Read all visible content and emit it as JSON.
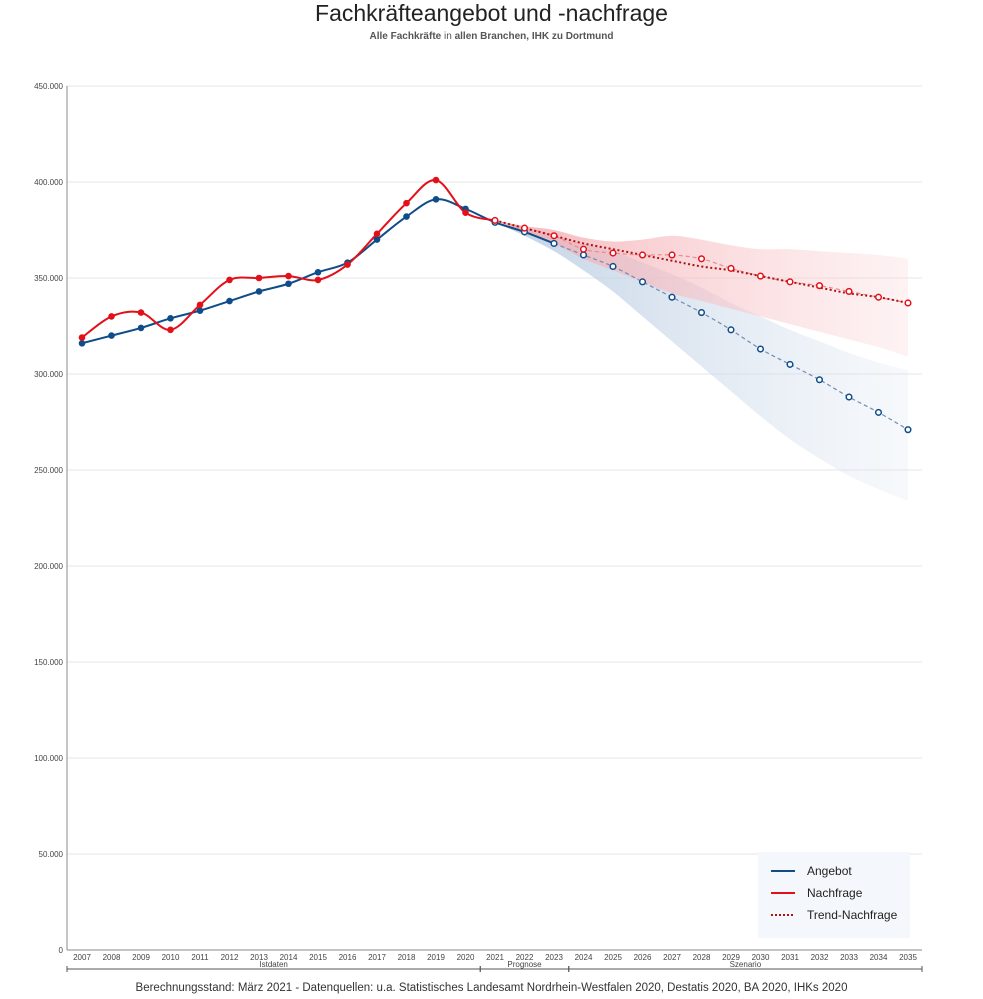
{
  "title": "Fachkräfteangebot und -nachfrage",
  "subtitle_parts": [
    "Alle Fachkräfte ",
    "in",
    " allen Branchen, IHK zu Dortmund"
  ],
  "footer": "Berechnungsstand: März 2021 - Datenquellen: u.a. Statistisches Landesamt Nordrhein-Westfalen 2020, Destatis 2020, BA 2020, IHKs 2020",
  "colors": {
    "angebot": "#0f4c8a",
    "nachfrage": "#e3101a",
    "trend": "#b01010",
    "angebot_band": "#c9d7e8",
    "nachfrage_band": "#f7c6c9",
    "grid": "#e4e4e4",
    "axis": "#888888"
  },
  "chart_data": {
    "type": "line",
    "x": [
      2007,
      2008,
      2009,
      2010,
      2011,
      2012,
      2013,
      2014,
      2015,
      2016,
      2017,
      2018,
      2019,
      2020,
      2021,
      2022,
      2023,
      2024,
      2025,
      2026,
      2027,
      2028,
      2029,
      2030,
      2031,
      2032,
      2033,
      2034,
      2035
    ],
    "ylim": [
      0,
      450000
    ],
    "yticks": [
      0,
      50000,
      100000,
      150000,
      200000,
      250000,
      300000,
      350000,
      400000,
      450000
    ],
    "ytick_labels": [
      "0",
      "50.000",
      "100.000",
      "150.000",
      "200.000",
      "250.000",
      "300.000",
      "350.000",
      "400.000",
      "450.000"
    ],
    "grid": true,
    "legend_position": "bottom-right",
    "periods": [
      {
        "label": "Istdaten",
        "from": 2007,
        "to": 2020
      },
      {
        "label": "Prognose",
        "from": 2021,
        "to": 2023
      },
      {
        "label": "Szenario",
        "from": 2024,
        "to": 2035
      }
    ],
    "series": [
      {
        "name": "Angebot",
        "key": "angebot",
        "values": [
          316000,
          320000,
          324000,
          329000,
          333000,
          338000,
          343000,
          347000,
          353000,
          358000,
          370000,
          382000,
          391000,
          386000,
          379000,
          374000,
          368000,
          362000,
          356000,
          348000,
          340000,
          332000,
          323000,
          313000,
          305000,
          297000,
          288000,
          280000,
          271000
        ],
        "band_low": [
          null,
          null,
          null,
          null,
          null,
          null,
          null,
          null,
          null,
          null,
          null,
          null,
          null,
          null,
          379000,
          372000,
          364000,
          354000,
          343000,
          330000,
          317000,
          304000,
          291000,
          278000,
          266000,
          256000,
          247000,
          240000,
          234000
        ],
        "band_high": [
          null,
          null,
          null,
          null,
          null,
          null,
          null,
          null,
          null,
          null,
          null,
          null,
          null,
          null,
          379000,
          376000,
          372000,
          368000,
          364000,
          358000,
          352000,
          345000,
          337000,
          330000,
          323000,
          317000,
          311000,
          306000,
          302000
        ]
      },
      {
        "name": "Nachfrage",
        "key": "nachfrage",
        "values": [
          319000,
          330000,
          332000,
          323000,
          336000,
          349000,
          350000,
          351000,
          349000,
          357000,
          373000,
          389000,
          401000,
          384000,
          380000,
          376000,
          372000,
          365000,
          363000,
          362000,
          362000,
          360000,
          355000,
          351000,
          348000,
          346000,
          343000,
          340000,
          337000
        ],
        "band_low": [
          null,
          null,
          null,
          null,
          null,
          null,
          null,
          null,
          null,
          null,
          null,
          null,
          null,
          null,
          380000,
          374000,
          368000,
          360000,
          354000,
          348000,
          342000,
          338000,
          334000,
          330000,
          326000,
          322000,
          318000,
          314000,
          309000
        ],
        "band_high": [
          null,
          null,
          null,
          null,
          null,
          null,
          null,
          null,
          null,
          null,
          null,
          null,
          null,
          null,
          380000,
          377000,
          375000,
          371000,
          369000,
          370000,
          372000,
          370000,
          367000,
          365000,
          365000,
          364000,
          363000,
          362000,
          360000
        ]
      },
      {
        "name": "Trend-Nachfrage",
        "key": "trend",
        "from": 2021,
        "values": [
          null,
          null,
          null,
          null,
          null,
          null,
          null,
          null,
          null,
          null,
          null,
          null,
          null,
          null,
          380000,
          376000,
          372000,
          368000,
          365000,
          362000,
          359000,
          356000,
          354000,
          351000,
          348000,
          345000,
          342000,
          340000,
          337000
        ]
      }
    ]
  }
}
